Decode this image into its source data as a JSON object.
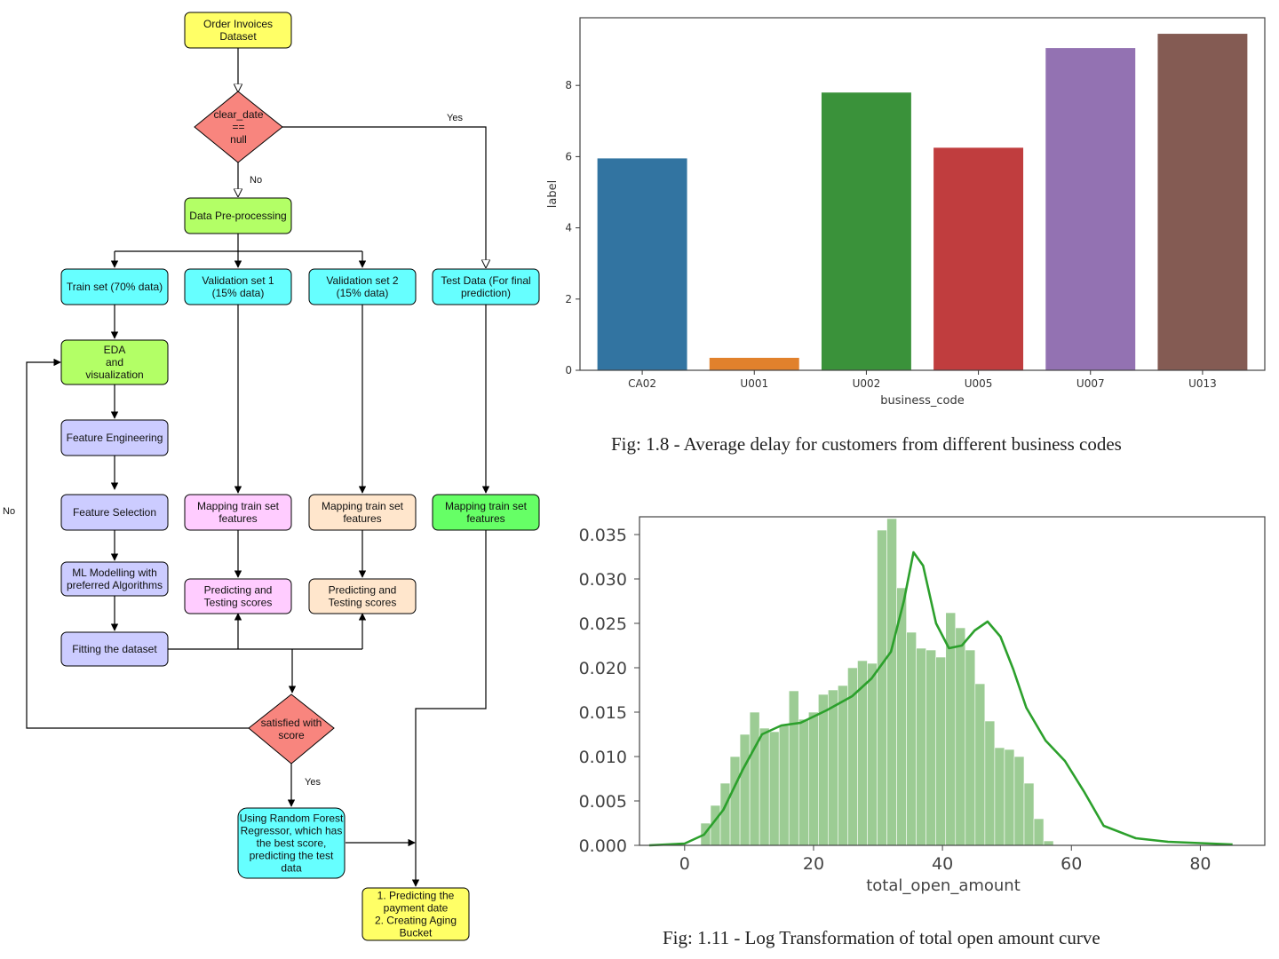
{
  "flowchart": {
    "nodes": {
      "dataset": [
        "Order Invoices",
        "Dataset"
      ],
      "clear_date": [
        "clear_date",
        "==",
        "null"
      ],
      "preprocess": [
        "Data Pre-processing"
      ],
      "train": [
        "Train set (70% data)"
      ],
      "val1": [
        "Validation set 1",
        "(15% data)"
      ],
      "val2": [
        "Validation set 2",
        "(15% data)"
      ],
      "test": [
        "Test Data (For final",
        "prediction)"
      ],
      "eda": [
        "EDA",
        "and",
        "visualization"
      ],
      "feat_eng": [
        "Feature Engineering"
      ],
      "feat_sel": [
        "Feature Selection"
      ],
      "map1": [
        "Mapping train set",
        "features"
      ],
      "map2": [
        "Mapping train set",
        "features"
      ],
      "map3": [
        "Mapping train set",
        "features"
      ],
      "ml": [
        "ML Modelling with",
        "preferred Algorithms"
      ],
      "pred1": [
        "Predicting and",
        "Testing scores"
      ],
      "pred2": [
        "Predicting and",
        "Testing scores"
      ],
      "fit": [
        "Fitting the dataset"
      ],
      "satisfied": [
        "satisfied with",
        "score"
      ],
      "rf": [
        "Using Random Forest",
        "Regressor, which has",
        "the best score,",
        "predicting the test",
        "data"
      ],
      "final": [
        "1. Predicting the",
        "payment date",
        "2. Creating Aging",
        "Bucket"
      ]
    },
    "labels": {
      "yes_top": "Yes",
      "no_mid": "No",
      "no_left": "No",
      "yes_bottom": "Yes"
    },
    "colors": {
      "yellow": "#ffff66",
      "red": "#f8857e",
      "green": "#b3ff66",
      "cyan": "#66ffff",
      "lavender": "#ccccff",
      "pink": "#ffccff",
      "peach": "#ffe6cc",
      "bright_green": "#66ff66"
    }
  },
  "chart_data": [
    {
      "type": "bar",
      "categories": [
        "CA02",
        "U001",
        "U002",
        "U005",
        "U007",
        "U013"
      ],
      "values": [
        5.95,
        0.35,
        7.8,
        6.25,
        9.05,
        9.45
      ],
      "colors": [
        "#3274a1",
        "#e1812c",
        "#3a923a",
        "#c03d3e",
        "#9372b2",
        "#845b53"
      ],
      "xlabel": "business_code",
      "ylabel": "label",
      "yticks": [
        0,
        2,
        4,
        6,
        8
      ],
      "ylim": [
        0,
        9.9
      ],
      "grid": false,
      "caption": "Fig: 1.8 - Average delay for customers from different business codes"
    },
    {
      "type": "area",
      "xlabel": "total_open_amount",
      "xticks": [
        0,
        20,
        40,
        60,
        80
      ],
      "yticks_labels": [
        "0.000",
        "0.005",
        "0.010",
        "0.015",
        "0.020",
        "0.025",
        "0.030",
        "0.035"
      ],
      "xlim": [
        -7,
        90
      ],
      "ylim": [
        0,
        0.037
      ],
      "hist_bin_start": 2.5,
      "hist_bin_width": 1.52,
      "hist_values": [
        0.0025,
        0.0045,
        0.007,
        0.01,
        0.0125,
        0.015,
        0.0132,
        0.0128,
        0.0135,
        0.0174,
        0.0142,
        0.015,
        0.017,
        0.0175,
        0.018,
        0.02,
        0.0208,
        0.0205,
        0.0355,
        0.0368,
        0.029,
        0.024,
        0.0222,
        0.022,
        0.0212,
        0.0262,
        0.0245,
        0.022,
        0.0182,
        0.014,
        0.011,
        0.0108,
        0.01,
        0.007,
        0.003,
        0.0005
      ],
      "kde_x": [
        -5.5,
        0,
        3,
        6,
        9,
        12,
        15,
        18,
        22,
        26,
        29,
        32,
        34,
        35.5,
        37,
        39,
        41,
        43,
        45,
        47,
        49,
        51,
        53,
        56,
        59,
        62,
        65,
        70,
        75,
        85
      ],
      "kde_y": [
        0.0,
        0.0002,
        0.0012,
        0.004,
        0.0085,
        0.0125,
        0.0135,
        0.0138,
        0.0152,
        0.0168,
        0.0188,
        0.0218,
        0.0275,
        0.033,
        0.0315,
        0.025,
        0.0222,
        0.0225,
        0.0242,
        0.0252,
        0.0235,
        0.0198,
        0.0155,
        0.0118,
        0.0095,
        0.006,
        0.0022,
        0.0008,
        0.0004,
        0.0001
      ],
      "color": "#2ca02c",
      "grid": false,
      "caption": "Fig: 1.11 - Log Transformation of total open amount curve"
    }
  ]
}
